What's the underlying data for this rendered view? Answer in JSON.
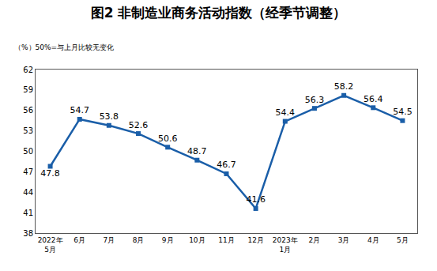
{
  "chart_data": {
    "type": "line",
    "title": "图2 非制造业商务活动指数（经季节调整）",
    "subtitle": "（%）50%=与上月比较无变化",
    "categories": [
      "2022年\n5月",
      "6月",
      "7月",
      "8月",
      "9月",
      "10月",
      "11月",
      "12月",
      "2023年\n1月",
      "2月",
      "3月",
      "4月",
      "5月"
    ],
    "values": [
      47.8,
      54.7,
      53.8,
      52.6,
      50.6,
      48.7,
      46.7,
      41.6,
      54.4,
      56.3,
      58.2,
      56.4,
      54.5
    ],
    "color": "#1a5ea8",
    "marker": "square",
    "ylim": [
      38,
      62
    ],
    "yticks": [
      38,
      41,
      44,
      47,
      50,
      53,
      56,
      59,
      62
    ],
    "grid": false,
    "data_labels": true
  }
}
